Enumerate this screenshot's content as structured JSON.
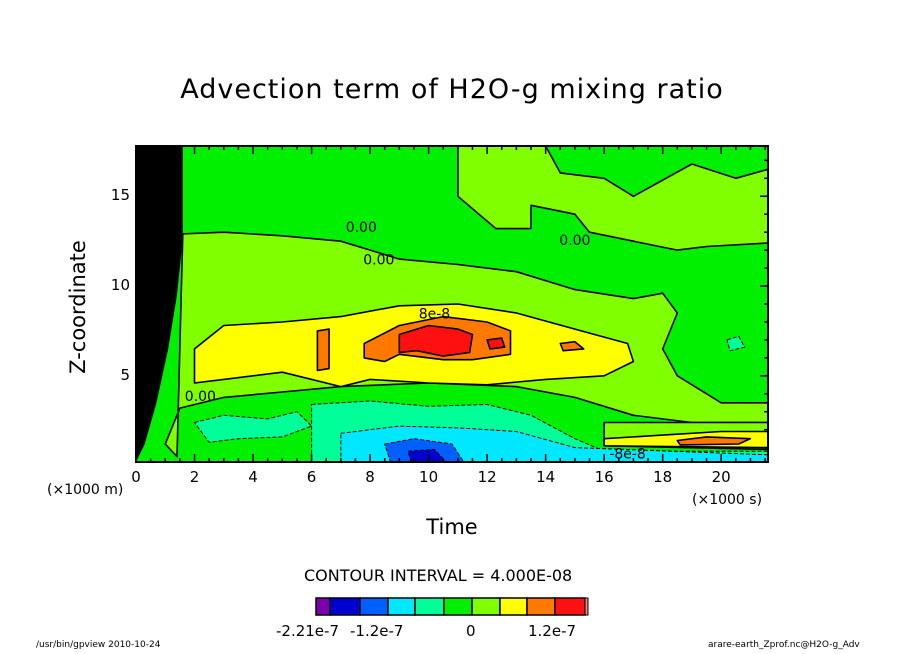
{
  "chart_data": {
    "type": "heatmap",
    "subtype": "filled-contour",
    "title": "Advection term of H2O-g mixing ratio",
    "xlabel": "Time",
    "ylabel": "Z-coordinate",
    "x_unit_label": "(×1000 s)",
    "y_unit_label": "(×1000 m)",
    "xlim": [
      0,
      21.6
    ],
    "ylim": [
      0.2,
      17.8
    ],
    "x_ticks": [
      0,
      2,
      4,
      6,
      8,
      10,
      12,
      14,
      16,
      18,
      20
    ],
    "x_tick_labels": [
      "0",
      "2",
      "4",
      "6",
      "8",
      "10",
      "12",
      "14",
      "16",
      "18",
      "20"
    ],
    "y_ticks": [
      5,
      10,
      15
    ],
    "y_tick_labels": [
      "5",
      "10",
      "15"
    ],
    "contour_interval_text": "CONTOUR INTERVAL = 4.000E-08",
    "value_unit_scale": 1e-08,
    "levels": [
      -22.1,
      -20,
      -16,
      -12,
      -8,
      -4,
      0,
      4,
      8,
      12,
      16
    ],
    "colors": [
      "#7a00b0",
      "#0000d0",
      "#0060ff",
      "#00e8ff",
      "#00ff98",
      "#00f000",
      "#80ff00",
      "#ffff00",
      "#ff7800",
      "#ff1010"
    ],
    "colorbar_labels": [
      "-2.21e-7",
      "-1.2e-7",
      "0",
      "1.2e-7"
    ],
    "regions": [
      {
        "value": 2,
        "points": [
          [
            1.5,
            12.9
          ],
          [
            3,
            13
          ],
          [
            5,
            12.8
          ],
          [
            7,
            12.5
          ],
          [
            8,
            12
          ],
          [
            9,
            11.5
          ],
          [
            11,
            11.2
          ],
          [
            13,
            10.8
          ],
          [
            15,
            9.8
          ],
          [
            17,
            9.3
          ],
          [
            18,
            9.6
          ],
          [
            18.5,
            8.5
          ],
          [
            18,
            6.5
          ],
          [
            18.5,
            5
          ],
          [
            20,
            3.5
          ],
          [
            21.6,
            3.5
          ],
          [
            21.6,
            2.4
          ],
          [
            19,
            2.4
          ],
          [
            17,
            2.8
          ],
          [
            15,
            3.8
          ],
          [
            13,
            4.4
          ],
          [
            10,
            4.6
          ],
          [
            7,
            4.4
          ],
          [
            5,
            4.1
          ],
          [
            3,
            3.8
          ],
          [
            1.5,
            3.2
          ],
          [
            1,
            1.2
          ],
          [
            1.4,
            0.5
          ],
          [
            1.6,
            12.9
          ]
        ]
      },
      {
        "value": 2,
        "points": [
          [
            11,
            17.8
          ],
          [
            11,
            15
          ],
          [
            12.3,
            13.2
          ],
          [
            13.5,
            13.2
          ],
          [
            13.5,
            14.5
          ],
          [
            15,
            14
          ],
          [
            15.5,
            13
          ],
          [
            17,
            12.5
          ],
          [
            18.5,
            12
          ],
          [
            19.5,
            12.2
          ],
          [
            21.6,
            12.4
          ],
          [
            21.6,
            16.5
          ],
          [
            20.5,
            16
          ],
          [
            19,
            16.8
          ],
          [
            17,
            15
          ],
          [
            16,
            16
          ],
          [
            14.5,
            16.3
          ],
          [
            14,
            17.8
          ]
        ]
      },
      {
        "value": 2,
        "points": [
          [
            16,
            2.4
          ],
          [
            21.6,
            2.4
          ],
          [
            21.6,
            0.9
          ],
          [
            16,
            1.1
          ]
        ]
      },
      {
        "value": -6,
        "points": [
          [
            2,
            2.4
          ],
          [
            3,
            2.8
          ],
          [
            4.5,
            2.6
          ],
          [
            5.5,
            3
          ],
          [
            6,
            2.2
          ],
          [
            5,
            1.6
          ],
          [
            3.5,
            1.5
          ],
          [
            2.5,
            1.3
          ]
        ]
      },
      {
        "value": -6,
        "points": [
          [
            6,
            3.4
          ],
          [
            8,
            3.6
          ],
          [
            10,
            3.3
          ],
          [
            12,
            3.4
          ],
          [
            13.5,
            2.8
          ],
          [
            15,
            1.5
          ],
          [
            16,
            0.8
          ],
          [
            21.6,
            0.8
          ],
          [
            21.6,
            0.2
          ],
          [
            6,
            0.2
          ]
        ]
      },
      {
        "value": -6,
        "points": [
          [
            20.2,
            7
          ],
          [
            20.6,
            7.2
          ],
          [
            20.8,
            6.6
          ],
          [
            20.3,
            6.4
          ]
        ]
      },
      {
        "value": 6,
        "points": [
          [
            2,
            6.5
          ],
          [
            3,
            7.8
          ],
          [
            5,
            8
          ],
          [
            7,
            8.3
          ],
          [
            9,
            8.9
          ],
          [
            11,
            9
          ],
          [
            13,
            8.5
          ],
          [
            15,
            7.6
          ],
          [
            16.8,
            6.8
          ],
          [
            17,
            5.8
          ],
          [
            16,
            5
          ],
          [
            14,
            4.8
          ],
          [
            12,
            4.5
          ],
          [
            10,
            4.6
          ],
          [
            8,
            4.8
          ],
          [
            7,
            4.4
          ],
          [
            5,
            5.2
          ],
          [
            3,
            4.8
          ],
          [
            2,
            4.6
          ]
        ]
      },
      {
        "value": 6,
        "points": [
          [
            16,
            1.5
          ],
          [
            18,
            1.7
          ],
          [
            20,
            1.9
          ],
          [
            21.6,
            1.9
          ],
          [
            21.6,
            1.0
          ],
          [
            16,
            1.1
          ]
        ]
      },
      {
        "value": 10,
        "points": [
          [
            7.8,
            6.8
          ],
          [
            9,
            7.8
          ],
          [
            10.5,
            8.3
          ],
          [
            12,
            8.0
          ],
          [
            12.8,
            7.5
          ],
          [
            12.8,
            6.2
          ],
          [
            11.5,
            5.9
          ],
          [
            10.5,
            5.9
          ],
          [
            9,
            6.2
          ],
          [
            8.5,
            5.8
          ],
          [
            7.8,
            6.0
          ]
        ]
      },
      {
        "value": 10,
        "points": [
          [
            6.2,
            7.5
          ],
          [
            6.6,
            7.6
          ],
          [
            6.6,
            5.4
          ],
          [
            6.2,
            5.3
          ]
        ]
      },
      {
        "value": 10,
        "points": [
          [
            14.5,
            6.8
          ],
          [
            15.0,
            6.9
          ],
          [
            15.3,
            6.5
          ],
          [
            14.6,
            6.4
          ]
        ]
      },
      {
        "value": 10,
        "points": [
          [
            18.5,
            1.4
          ],
          [
            19.5,
            1.6
          ],
          [
            21,
            1.5
          ],
          [
            20.6,
            1.2
          ],
          [
            18.6,
            1.15
          ]
        ]
      },
      {
        "value": 13,
        "points": [
          [
            9,
            7.3
          ],
          [
            10,
            7.8
          ],
          [
            11,
            7.6
          ],
          [
            11.5,
            7.3
          ],
          [
            11.4,
            6.3
          ],
          [
            10.5,
            6.1
          ],
          [
            9.6,
            6.4
          ],
          [
            9,
            6.3
          ]
        ]
      },
      {
        "value": 13,
        "points": [
          [
            12.0,
            7.0
          ],
          [
            12.5,
            7.1
          ],
          [
            12.6,
            6.6
          ],
          [
            12.1,
            6.5
          ]
        ]
      },
      {
        "value": -10,
        "points": [
          [
            7,
            1.8
          ],
          [
            9,
            2.2
          ],
          [
            11,
            2.1
          ],
          [
            13,
            1.9
          ],
          [
            15,
            1.0
          ],
          [
            21.6,
            0.6
          ],
          [
            21.6,
            0.2
          ],
          [
            7,
            0.2
          ]
        ]
      },
      {
        "value": -14,
        "points": [
          [
            8.5,
            1.2
          ],
          [
            9.5,
            1.5
          ],
          [
            10.8,
            1.2
          ],
          [
            11.2,
            0.2
          ],
          [
            8.7,
            0.2
          ]
        ]
      },
      {
        "value": -18,
        "points": [
          [
            9.3,
            0.8
          ],
          [
            10.2,
            0.9
          ],
          [
            10.6,
            0.2
          ],
          [
            9.4,
            0.2
          ]
        ]
      }
    ],
    "dense_contour_region": [
      [
        0,
        17.8
      ],
      [
        1.6,
        17.8
      ],
      [
        1.6,
        12.6
      ],
      [
        1.4,
        9.5
      ],
      [
        1.1,
        6.5
      ],
      [
        0.7,
        3.5
      ],
      [
        0.3,
        1.2
      ],
      [
        0,
        0.2
      ]
    ],
    "contour_labels": [
      {
        "text": "0.00",
        "x": 7.7,
        "y": 13.0
      },
      {
        "text": "0.00",
        "x": 8.3,
        "y": 11.2
      },
      {
        "text": "0.00",
        "x": 15.0,
        "y": 12.3
      },
      {
        "text": "0.00",
        "x": 2.2,
        "y": 3.6
      },
      {
        "text": "8e-8",
        "x": 10.2,
        "y": 8.2
      },
      {
        "text": "-8e-8",
        "x": 16.8,
        "y": 0.4
      }
    ]
  },
  "footer": {
    "left": "/usr/bin/gpview  2010-10-24",
    "right": "arare-earth_Zprof.nc@H2O-g_Adv"
  }
}
